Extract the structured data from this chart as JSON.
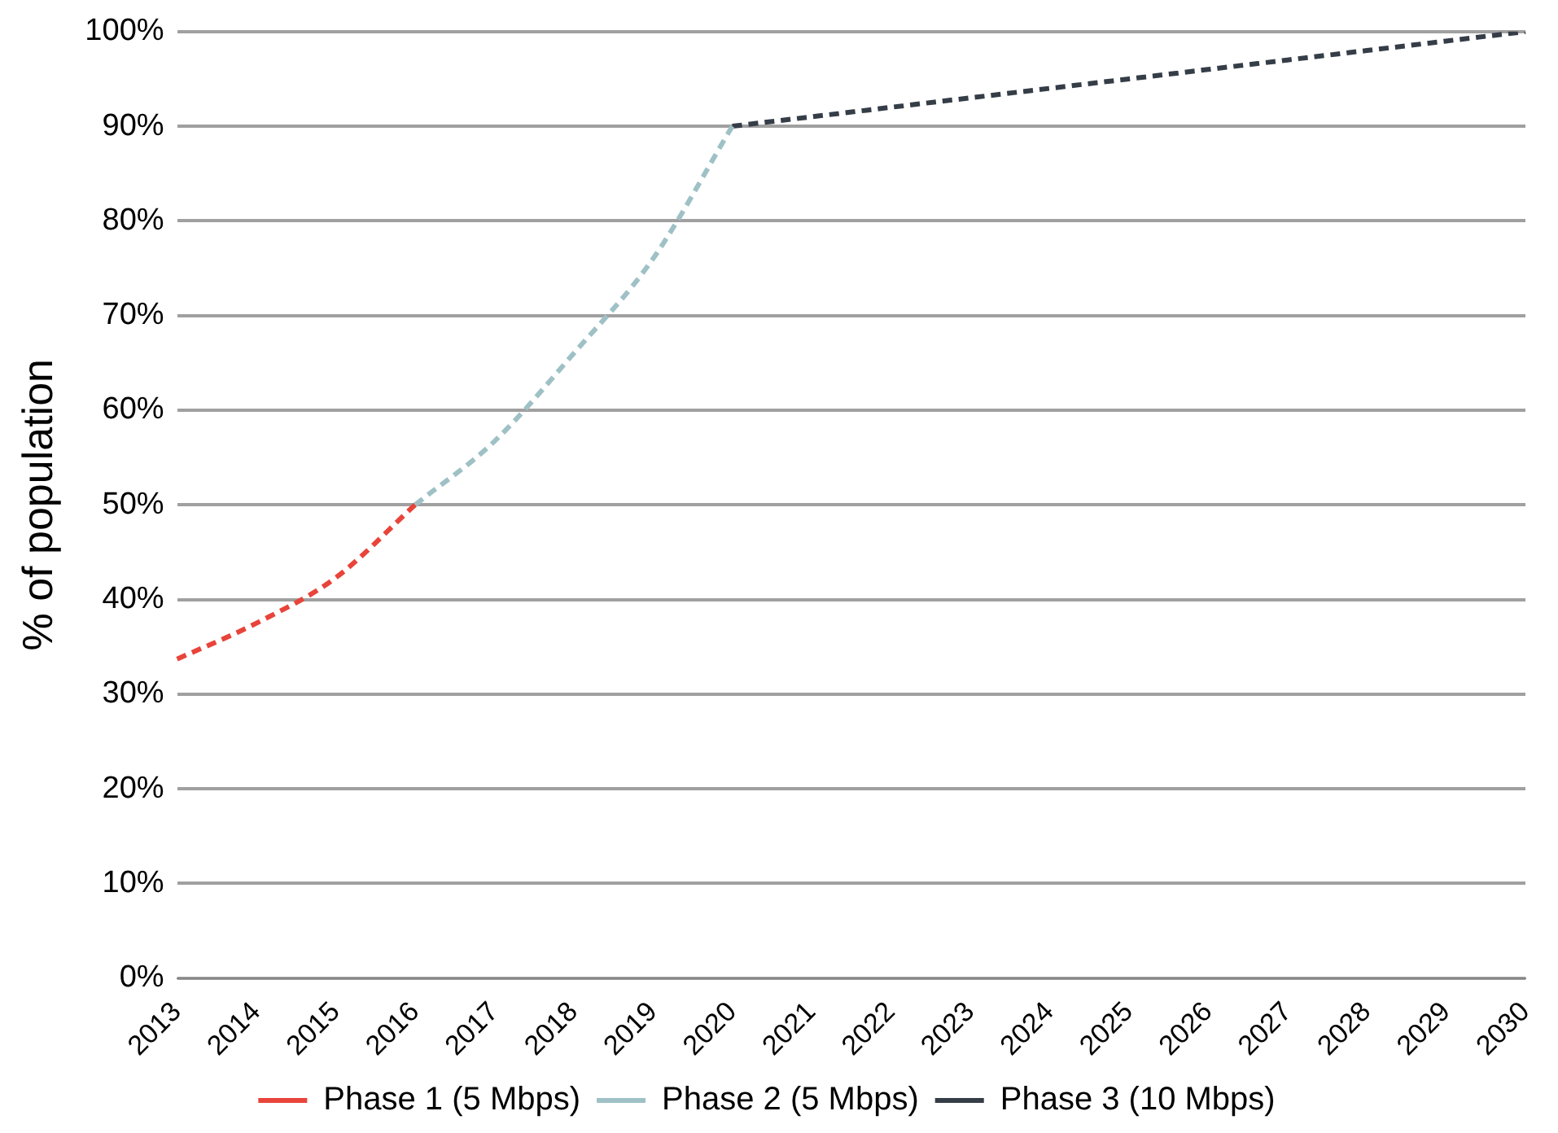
{
  "chart_data": {
    "type": "line",
    "ylabel": "% of population",
    "categories": [
      "2013",
      "2014",
      "2015",
      "2016",
      "2017",
      "2018",
      "2019",
      "2020",
      "2021",
      "2022",
      "2023",
      "2024",
      "2025",
      "2026",
      "2027",
      "2028",
      "2029",
      "2030"
    ],
    "series": [
      {
        "name": "Phase 1 (5 Mbps)",
        "color": "#e8443a",
        "values": [
          33.7,
          37.5,
          42.3,
          50,
          null,
          null,
          null,
          null,
          null,
          null,
          null,
          null,
          null,
          null,
          null,
          null,
          null,
          null
        ]
      },
      {
        "name": "Phase 2 (5 Mbps)",
        "color": "#9fc1c6",
        "values": [
          null,
          null,
          null,
          50,
          56.7,
          66,
          76,
          90,
          null,
          null,
          null,
          null,
          null,
          null,
          null,
          null,
          null,
          null
        ]
      },
      {
        "name": "Phase 3 (10 Mbps)",
        "color": "#353d47",
        "values": [
          null,
          null,
          null,
          null,
          null,
          null,
          null,
          90,
          91,
          92,
          93,
          94,
          95,
          96,
          97,
          98,
          99,
          100
        ]
      }
    ],
    "ylim": [
      0,
      100
    ],
    "yticks": [
      {
        "value": 0,
        "label": "0%"
      },
      {
        "value": 10,
        "label": "10%"
      },
      {
        "value": 20,
        "label": "20%"
      },
      {
        "value": 30,
        "label": "30%"
      },
      {
        "value": 40,
        "label": "40%"
      },
      {
        "value": 50,
        "label": "50%"
      },
      {
        "value": 60,
        "label": "60%"
      },
      {
        "value": 70,
        "label": "70%"
      },
      {
        "value": 80,
        "label": "80%"
      },
      {
        "value": 90,
        "label": "90%"
      },
      {
        "value": 100,
        "label": "100%"
      }
    ],
    "grid": "y",
    "legend": "bottom",
    "marker": "none",
    "line_style": "dashed"
  }
}
